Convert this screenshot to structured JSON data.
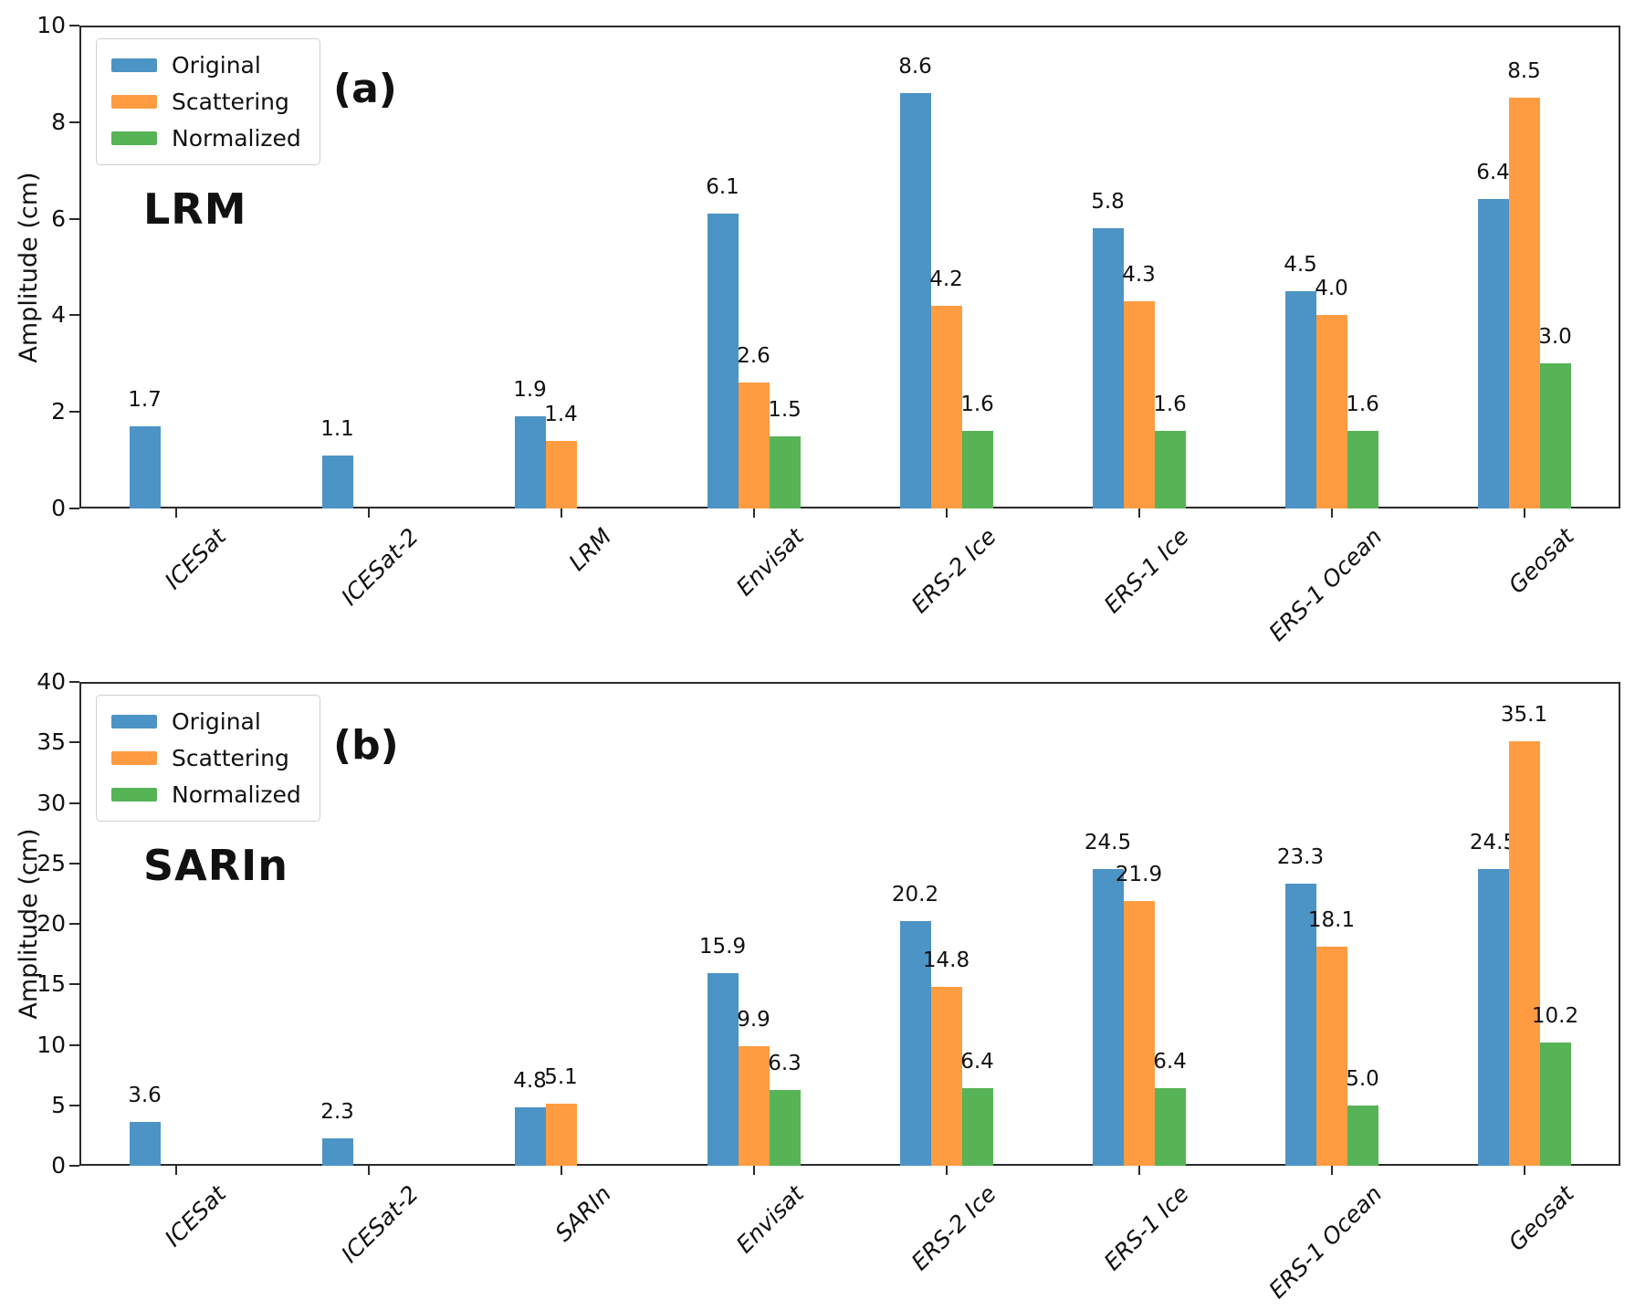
{
  "figure": {
    "background": "#ffffff",
    "spine_color": "#2b2b2b"
  },
  "chart_data": [
    {
      "type": "bar",
      "panel_label": "(a)",
      "title": "LRM",
      "ylabel": "Amplitude (cm)",
      "ylim": [
        0,
        10
      ],
      "yticks": [
        0,
        2,
        4,
        6,
        8,
        10
      ],
      "grid": false,
      "legend_position": "upper-left",
      "categories": [
        "ICESat",
        "ICESat-2",
        "LRM",
        "Envisat",
        "ERS-2 Ice",
        "ERS-1 Ice",
        "ERS-1 Ocean",
        "Geosat"
      ],
      "series": [
        {
          "name": "Original",
          "color": "#4C93C6",
          "values": [
            1.7,
            1.1,
            1.9,
            6.1,
            8.6,
            5.8,
            4.5,
            6.4
          ]
        },
        {
          "name": "Scattering",
          "color": "#FF9C42",
          "values": [
            null,
            null,
            1.4,
            2.6,
            4.2,
            4.3,
            4.0,
            8.5
          ]
        },
        {
          "name": "Normalized",
          "color": "#56B356",
          "values": [
            null,
            null,
            null,
            1.5,
            1.6,
            1.6,
            1.6,
            3.0
          ]
        }
      ]
    },
    {
      "type": "bar",
      "panel_label": "(b)",
      "title": "SARIn",
      "ylabel": "Amplitude (cm)",
      "ylim": [
        0,
        40
      ],
      "yticks": [
        0,
        5,
        10,
        15,
        20,
        25,
        30,
        35,
        40
      ],
      "grid": false,
      "legend_position": "upper-left",
      "categories": [
        "ICESat",
        "ICESat-2",
        "SARIn",
        "Envisat",
        "ERS-2 Ice",
        "ERS-1 Ice",
        "ERS-1 Ocean",
        "Geosat"
      ],
      "series": [
        {
          "name": "Original",
          "color": "#4C93C6",
          "values": [
            3.6,
            2.3,
            4.8,
            15.9,
            20.2,
            24.5,
            23.3,
            24.5
          ]
        },
        {
          "name": "Scattering",
          "color": "#FF9C42",
          "values": [
            null,
            null,
            5.1,
            9.9,
            14.8,
            21.9,
            18.1,
            35.1
          ]
        },
        {
          "name": "Normalized",
          "color": "#56B356",
          "values": [
            null,
            null,
            null,
            6.3,
            6.4,
            6.4,
            5.0,
            10.2
          ]
        }
      ]
    }
  ]
}
